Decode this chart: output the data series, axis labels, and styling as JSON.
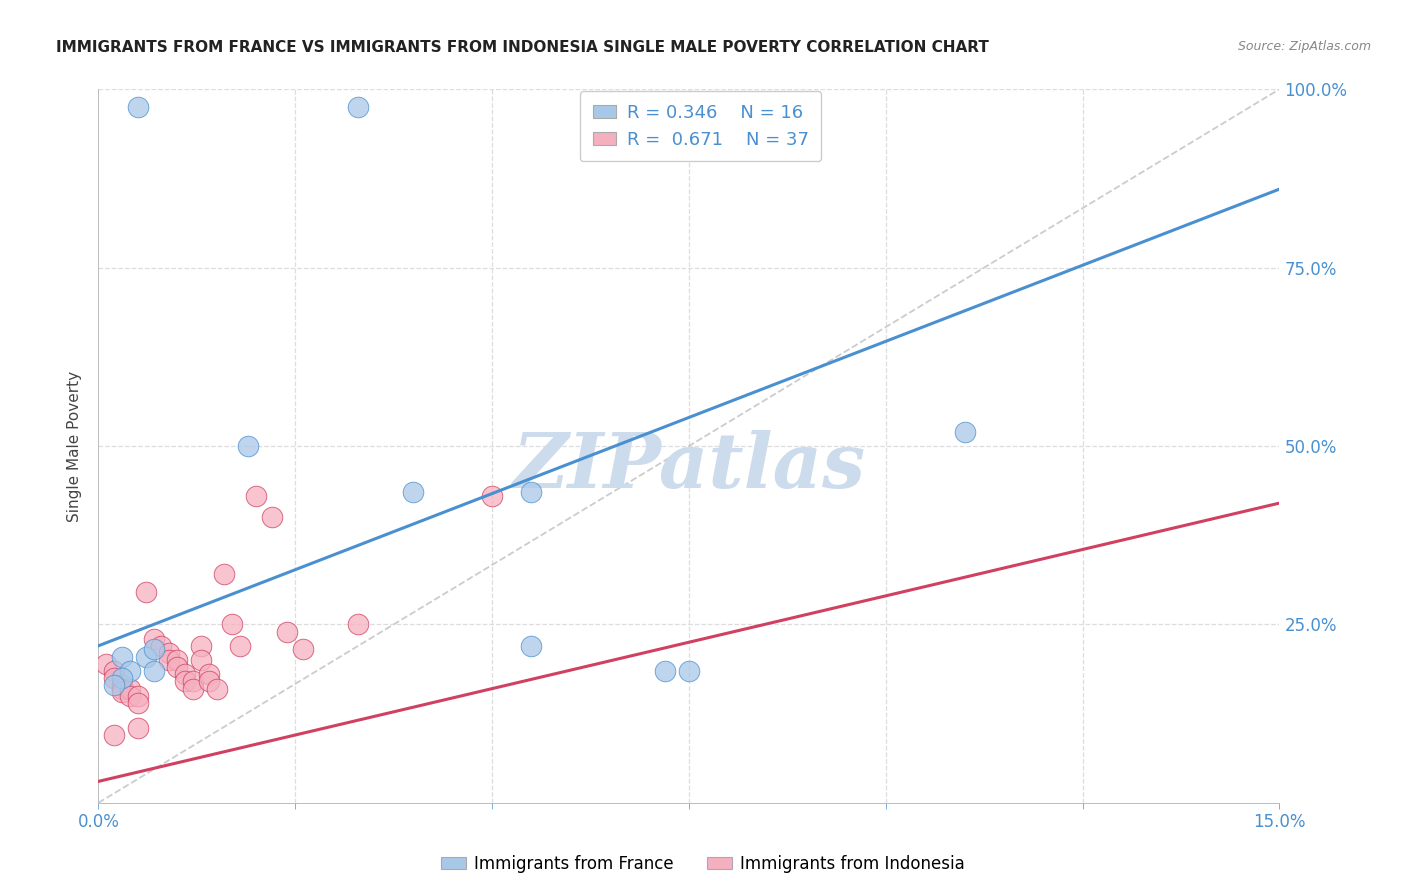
{
  "title": "IMMIGRANTS FROM FRANCE VS IMMIGRANTS FROM INDONESIA SINGLE MALE POVERTY CORRELATION CHART",
  "source": "Source: ZipAtlas.com",
  "ylabel": "Single Male Poverty",
  "xlim": [
    0.0,
    0.15
  ],
  "ylim": [
    0.0,
    1.0
  ],
  "legend_r_france": "0.346",
  "legend_n_france": "16",
  "legend_r_indonesia": "0.671",
  "legend_n_indonesia": "37",
  "france_color": "#a8c8e8",
  "indonesia_color": "#f5b0c0",
  "france_line_color": "#4a90d0",
  "indonesia_line_color": "#d04060",
  "diagonal_color": "#cccccc",
  "france_points": [
    [
      0.005,
      0.975
    ],
    [
      0.033,
      0.975
    ],
    [
      0.019,
      0.5
    ],
    [
      0.04,
      0.435
    ],
    [
      0.055,
      0.435
    ],
    [
      0.055,
      0.22
    ],
    [
      0.11,
      0.52
    ],
    [
      0.003,
      0.205
    ],
    [
      0.006,
      0.205
    ],
    [
      0.007,
      0.215
    ],
    [
      0.007,
      0.185
    ],
    [
      0.004,
      0.185
    ],
    [
      0.003,
      0.175
    ],
    [
      0.002,
      0.165
    ],
    [
      0.072,
      0.185
    ],
    [
      0.075,
      0.185
    ]
  ],
  "indonesia_points": [
    [
      0.001,
      0.195
    ],
    [
      0.002,
      0.185
    ],
    [
      0.002,
      0.175
    ],
    [
      0.003,
      0.165
    ],
    [
      0.003,
      0.16
    ],
    [
      0.003,
      0.155
    ],
    [
      0.004,
      0.16
    ],
    [
      0.004,
      0.15
    ],
    [
      0.005,
      0.15
    ],
    [
      0.005,
      0.14
    ],
    [
      0.005,
      0.105
    ],
    [
      0.006,
      0.295
    ],
    [
      0.007,
      0.23
    ],
    [
      0.008,
      0.22
    ],
    [
      0.009,
      0.21
    ],
    [
      0.009,
      0.2
    ],
    [
      0.01,
      0.2
    ],
    [
      0.01,
      0.19
    ],
    [
      0.011,
      0.18
    ],
    [
      0.011,
      0.17
    ],
    [
      0.012,
      0.17
    ],
    [
      0.012,
      0.16
    ],
    [
      0.013,
      0.22
    ],
    [
      0.013,
      0.2
    ],
    [
      0.014,
      0.18
    ],
    [
      0.014,
      0.17
    ],
    [
      0.015,
      0.16
    ],
    [
      0.016,
      0.32
    ],
    [
      0.017,
      0.25
    ],
    [
      0.018,
      0.22
    ],
    [
      0.02,
      0.43
    ],
    [
      0.022,
      0.4
    ],
    [
      0.024,
      0.24
    ],
    [
      0.026,
      0.215
    ],
    [
      0.033,
      0.25
    ],
    [
      0.05,
      0.43
    ],
    [
      0.002,
      0.095
    ]
  ],
  "background_color": "#ffffff",
  "grid_color": "#dddddd",
  "title_color": "#222222",
  "axis_label_color": "#444444",
  "right_axis_color": "#4a90d0",
  "watermark_text": "ZIPatlas",
  "watermark_color": "#ccdcec",
  "watermark_fontsize": 55,
  "france_line_x0": 0.0,
  "france_line_y0": 0.22,
  "france_line_x1": 0.15,
  "france_line_y1": 0.86,
  "indonesia_line_x0": 0.0,
  "indonesia_line_y0": 0.03,
  "indonesia_line_x1": 0.15,
  "indonesia_line_y1": 0.42
}
